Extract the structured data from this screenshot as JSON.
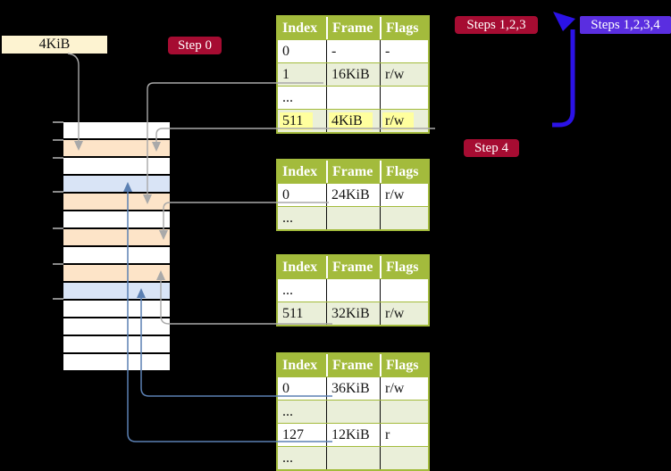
{
  "size_label": "4KiB",
  "badges": {
    "step0": "Step 0",
    "steps123": "Steps 1,2,3",
    "steps1234": "Steps 1,2,3,4",
    "step4": "Step 4"
  },
  "colors": {
    "table_header_green": "#a3bb3c",
    "table_row_green": "#eaefd9",
    "highlight_yellow": "#ffff9e",
    "frame_page_table_peach": "#fde4c8",
    "frame_mapped_page_blue": "#d9e4f6",
    "badge_crimson": "#a60c32",
    "badge_violet": "#5a2ee0",
    "loop_arrow_blue": "#2b12e6",
    "pointer_steel_blue": "#5b80b3",
    "pointer_gray": "#a9a9a9",
    "tick_gray": "#8a8a8a",
    "size_box_cream": "#fdf3d1"
  },
  "memory_column": {
    "rows": [
      "free",
      "page-table",
      "free",
      "mapped-page",
      "page-table",
      "free",
      "page-table",
      "free",
      "page-table",
      "mapped-page",
      "free",
      "free",
      "free",
      "free"
    ]
  },
  "tables": [
    {
      "name": "page-table-level-4",
      "headers": [
        "Index",
        "Frame",
        "Flags"
      ],
      "rows": [
        {
          "cells": [
            "0",
            "-",
            "-"
          ],
          "highlight": false
        },
        {
          "cells": [
            "1",
            "16KiB",
            "r/w"
          ],
          "highlight": false
        },
        {
          "cells": [
            "...",
            "",
            ""
          ],
          "highlight": false
        },
        {
          "cells": [
            "511",
            "4KiB",
            "r/w"
          ],
          "highlight": true
        }
      ]
    },
    {
      "name": "page-table-level-3",
      "headers": [
        "Index",
        "Frame",
        "Flags"
      ],
      "rows": [
        {
          "cells": [
            "0",
            "24KiB",
            "r/w"
          ],
          "highlight": false
        },
        {
          "cells": [
            "...",
            "",
            ""
          ],
          "highlight": false
        }
      ]
    },
    {
      "name": "page-table-level-2",
      "headers": [
        "Index",
        "Frame",
        "Flags"
      ],
      "rows": [
        {
          "cells": [
            "...",
            "",
            ""
          ],
          "highlight": false
        },
        {
          "cells": [
            "511",
            "32KiB",
            "r/w"
          ],
          "highlight": false
        }
      ]
    },
    {
      "name": "page-table-level-1",
      "headers": [
        "Index",
        "Frame",
        "Flags"
      ],
      "rows": [
        {
          "cells": [
            "0",
            "36KiB",
            "r/w"
          ],
          "highlight": false
        },
        {
          "cells": [
            "...",
            "",
            ""
          ],
          "highlight": false
        },
        {
          "cells": [
            "127",
            "12KiB",
            "r"
          ],
          "highlight": false
        },
        {
          "cells": [
            "...",
            "",
            ""
          ],
          "highlight": false
        }
      ]
    }
  ]
}
